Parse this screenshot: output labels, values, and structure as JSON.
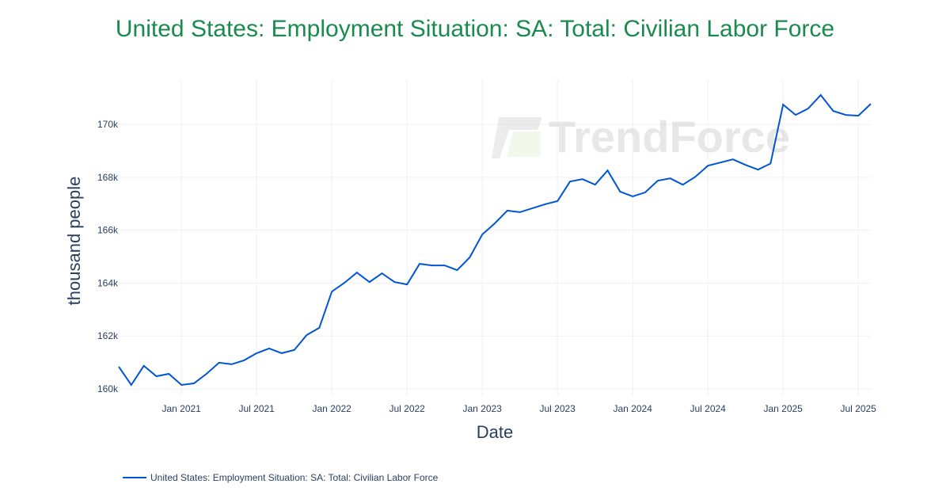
{
  "chart_data": {
    "type": "line",
    "title": "United States: Employment Situation: SA: Total: Civilian Labor Force",
    "xlabel": "Date",
    "ylabel": "thousand people",
    "x_start": "2020-08",
    "x_end": "2025-08",
    "x_ticks": [
      "Jan 2021",
      "Jul 2021",
      "Jan 2022",
      "Jul 2022",
      "Jan 2023",
      "Jul 2023",
      "Jan 2024",
      "Jul 2024",
      "Jan 2025",
      "Jul 2025"
    ],
    "y_ticks": [
      160000,
      162000,
      164000,
      166000,
      168000,
      170000
    ],
    "y_tick_labels": [
      "160k",
      "162k",
      "164k",
      "166k",
      "168k",
      "170k"
    ],
    "ylim": [
      159730,
      171710
    ],
    "grid": true,
    "legend_position": "bottom-left",
    "color": "#0055d4",
    "series": [
      {
        "name": "United States: Employment Situation: SA: Total: Civilian Labor Force",
        "frequency": "monthly",
        "values": [
          160840,
          160150,
          160870,
          160480,
          160570,
          160150,
          160210,
          160570,
          160990,
          160930,
          161080,
          161350,
          161530,
          161350,
          161470,
          162040,
          162310,
          163680,
          164010,
          164400,
          164040,
          164370,
          164040,
          163950,
          164730,
          164670,
          164670,
          164490,
          164970,
          165840,
          166260,
          166740,
          166680,
          166830,
          166980,
          167100,
          167840,
          167930,
          167720,
          168260,
          167460,
          167280,
          167430,
          167870,
          167960,
          167720,
          168020,
          168440,
          168560,
          168680,
          168470,
          168290,
          168520,
          170750,
          170360,
          170600,
          171110,
          170510,
          170360,
          170330,
          170780
        ]
      }
    ]
  },
  "watermark": "TrendForce"
}
